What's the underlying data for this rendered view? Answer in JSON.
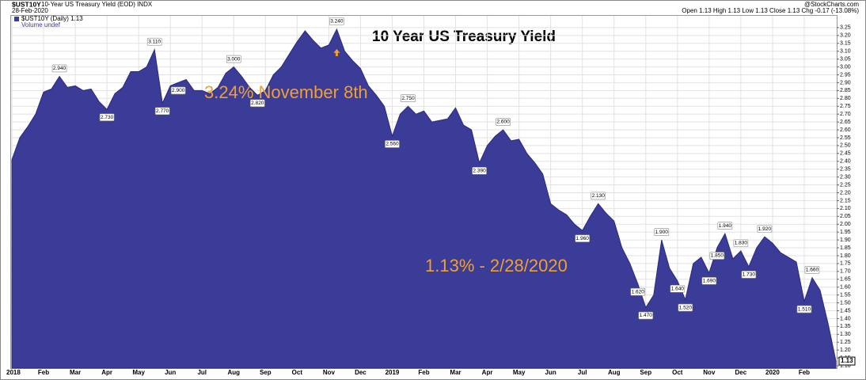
{
  "chart_data": {
    "type": "area",
    "symbol": "$UST10Y",
    "description": "10-Year US Treasury Yield (EOD) INDX",
    "date": "28-Feb-2020",
    "source": "@StockCharts.com",
    "quote": "Open 1.13 High 1.13 Low 1.13 Close 1.13 Chg -0.17 (-13.08%)",
    "volume_note": "Volume undef",
    "title": "10 Year US Treasury Yield",
    "annotations": [
      "3.24% November 8th",
      "1.13% -  2/28/2020"
    ],
    "categories": [
      "2018",
      null,
      null,
      null,
      "Feb",
      null,
      null,
      null,
      "Mar",
      null,
      null,
      null,
      "Apr",
      null,
      null,
      null,
      "May",
      null,
      null,
      null,
      "Jun",
      null,
      null,
      null,
      "Jul",
      null,
      null,
      null,
      "Aug",
      null,
      null,
      null,
      "Sep",
      null,
      null,
      null,
      "Oct",
      null,
      null,
      null,
      "Nov",
      null,
      null,
      null,
      "Dec",
      null,
      null,
      null,
      "2019",
      null,
      null,
      null,
      "Feb",
      null,
      null,
      null,
      "Mar",
      null,
      null,
      null,
      "Apr",
      null,
      null,
      null,
      "May",
      null,
      null,
      null,
      "Jun",
      null,
      null,
      null,
      "Jul",
      null,
      null,
      null,
      "Aug",
      null,
      null,
      null,
      "Sep",
      null,
      null,
      null,
      "Oct",
      null,
      null,
      null,
      "Nov",
      null,
      null,
      null,
      "Dec",
      null,
      null,
      null,
      "2020",
      null,
      null,
      null,
      "Feb",
      null,
      null,
      null,
      null
    ],
    "series": [
      {
        "name": "$UST10Y (Daily) 1.13",
        "color": "#3b3b98",
        "values": [
          2.41,
          2.55,
          2.62,
          2.7,
          2.84,
          2.86,
          2.94,
          2.87,
          2.88,
          2.85,
          2.86,
          2.78,
          2.73,
          2.83,
          2.87,
          2.97,
          2.97,
          3.0,
          3.11,
          2.77,
          2.88,
          2.9,
          2.92,
          2.85,
          2.85,
          2.83,
          2.87,
          2.96,
          3.0,
          2.94,
          2.87,
          2.82,
          2.85,
          2.95,
          3.0,
          3.08,
          3.16,
          3.23,
          3.17,
          3.12,
          3.14,
          3.24,
          3.1,
          3.04,
          2.99,
          2.88,
          2.82,
          2.75,
          2.56,
          2.7,
          2.75,
          2.7,
          2.72,
          2.65,
          2.66,
          2.67,
          2.74,
          2.63,
          2.6,
          2.39,
          2.5,
          2.56,
          2.6,
          2.53,
          2.54,
          2.45,
          2.39,
          2.32,
          2.13,
          2.09,
          2.06,
          2.0,
          1.96,
          2.05,
          2.13,
          2.07,
          2.02,
          1.85,
          1.75,
          1.62,
          1.47,
          1.55,
          1.9,
          1.72,
          1.64,
          1.52,
          1.75,
          1.79,
          1.69,
          1.85,
          1.94,
          1.78,
          1.83,
          1.73,
          1.85,
          1.92,
          1.88,
          1.82,
          1.79,
          1.76,
          1.51,
          1.66,
          1.58,
          1.37,
          1.13
        ],
        "value_labels": [
          null,
          null,
          null,
          null,
          null,
          null,
          "2.940",
          null,
          null,
          null,
          null,
          null,
          "2.730",
          null,
          null,
          null,
          null,
          null,
          "3.110",
          "2.770",
          null,
          "2.900",
          null,
          null,
          null,
          null,
          null,
          null,
          "3.000",
          null,
          null,
          "2.820",
          null,
          null,
          null,
          null,
          null,
          null,
          null,
          null,
          null,
          "3.240",
          null,
          null,
          null,
          null,
          null,
          null,
          "2.560",
          null,
          "2.750",
          null,
          null,
          null,
          null,
          null,
          null,
          null,
          null,
          "2.390",
          null,
          null,
          "2.600",
          null,
          null,
          null,
          null,
          null,
          null,
          null,
          null,
          null,
          "1.960",
          null,
          "2.130",
          null,
          null,
          null,
          null,
          "1.620",
          "1.470",
          null,
          "1.900",
          null,
          "1.640",
          "1.520",
          null,
          null,
          "1.690",
          "1.850",
          "1.940",
          null,
          "1.830",
          "1.730",
          null,
          "1.920",
          null,
          null,
          null,
          null,
          "1.510",
          "1.660",
          null,
          null,
          "1.13"
        ]
      }
    ],
    "ylim": [
      1.085,
      3.325
    ],
    "yticks": [
      3.25,
      {
        "value": 3.2,
        "label": "3.20"
      },
      3.15,
      {
        "value": 3.1,
        "label": "3.10"
      },
      3.05,
      {
        "value": 3,
        "label": "3.00"
      },
      2.95,
      {
        "value": 2.9,
        "label": "2.90"
      },
      2.85,
      {
        "value": 2.8,
        "label": "2.80"
      },
      2.75,
      {
        "value": 2.7,
        "label": "2.70"
      },
      2.65,
      {
        "value": 2.6,
        "label": "2.60"
      },
      2.55,
      {
        "value": 2.5,
        "label": "2.50"
      },
      2.45,
      {
        "value": 2.4,
        "label": "2.40"
      },
      2.35,
      {
        "value": 2.3,
        "label": "2.30"
      },
      2.25,
      {
        "value": 2.2,
        "label": "2.20"
      },
      2.15,
      {
        "value": 2.1,
        "label": "2.10"
      },
      2.05,
      {
        "value": 2,
        "label": "2.00"
      },
      1.95,
      {
        "value": 1.9,
        "label": "1.90"
      },
      1.85,
      {
        "value": 1.8,
        "label": "1.80"
      },
      1.75,
      {
        "value": 1.7,
        "label": "1.70"
      },
      1.65,
      {
        "value": 1.6,
        "label": "1.60"
      },
      1.55,
      {
        "value": 1.5,
        "label": "1.50"
      },
      1.45,
      {
        "value": 1.4,
        "label": "1.40"
      },
      1.35,
      {
        "value": 1.3,
        "label": "1.30"
      },
      1.25,
      {
        "value": 1.2,
        "label": "1.20"
      },
      1.15,
      {
        "value": 1.1,
        "label": "1.10"
      }
    ],
    "grid": true
  }
}
